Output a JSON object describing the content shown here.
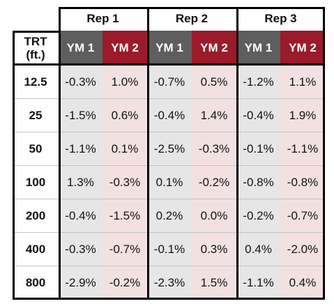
{
  "reps": [
    "Rep 1",
    "Rep 2",
    "Rep 3"
  ],
  "subheaders": [
    "YM 1",
    "YM 2"
  ],
  "trt_header": [
    "TRT",
    "(ft.)"
  ],
  "rows": [
    {
      "trt": "12.5",
      "values": [
        "-0.3%",
        "1.0%",
        "-0.7%",
        "0.5%",
        "-1.2%",
        "1.1%"
      ]
    },
    {
      "trt": "25",
      "values": [
        "-1.5%",
        "0.6%",
        "-0.4%",
        "1.4%",
        "-0.4%",
        "1.9%"
      ]
    },
    {
      "trt": "50",
      "values": [
        "-1.1%",
        "0.1%",
        "-2.5%",
        "-0.3%",
        "-0.1%",
        "-1.1%"
      ]
    },
    {
      "trt": "100",
      "values": [
        "1.3%",
        "-0.3%",
        "0.1%",
        "-0.2%",
        "-0.8%",
        "-0.8%"
      ]
    },
    {
      "trt": "200",
      "values": [
        "-0.4%",
        "-1.5%",
        "0.2%",
        "0.0%",
        "-0.2%",
        "-0.7%"
      ]
    },
    {
      "trt": "400",
      "values": [
        "-0.3%",
        "-0.7%",
        "-0.1%",
        "0.3%",
        "0.4%",
        "-2.0%"
      ]
    },
    {
      "trt": "800",
      "values": [
        "-2.9%",
        "-0.2%",
        "-2.3%",
        "1.5%",
        "-1.1%",
        "0.4%"
      ]
    }
  ],
  "colors": {
    "ym1_header": "#5e5e5e",
    "ym2_header": "#9b1b2a",
    "ym1_cell": "#e6e6e6",
    "ym2_cell": "#f3e1e1"
  }
}
